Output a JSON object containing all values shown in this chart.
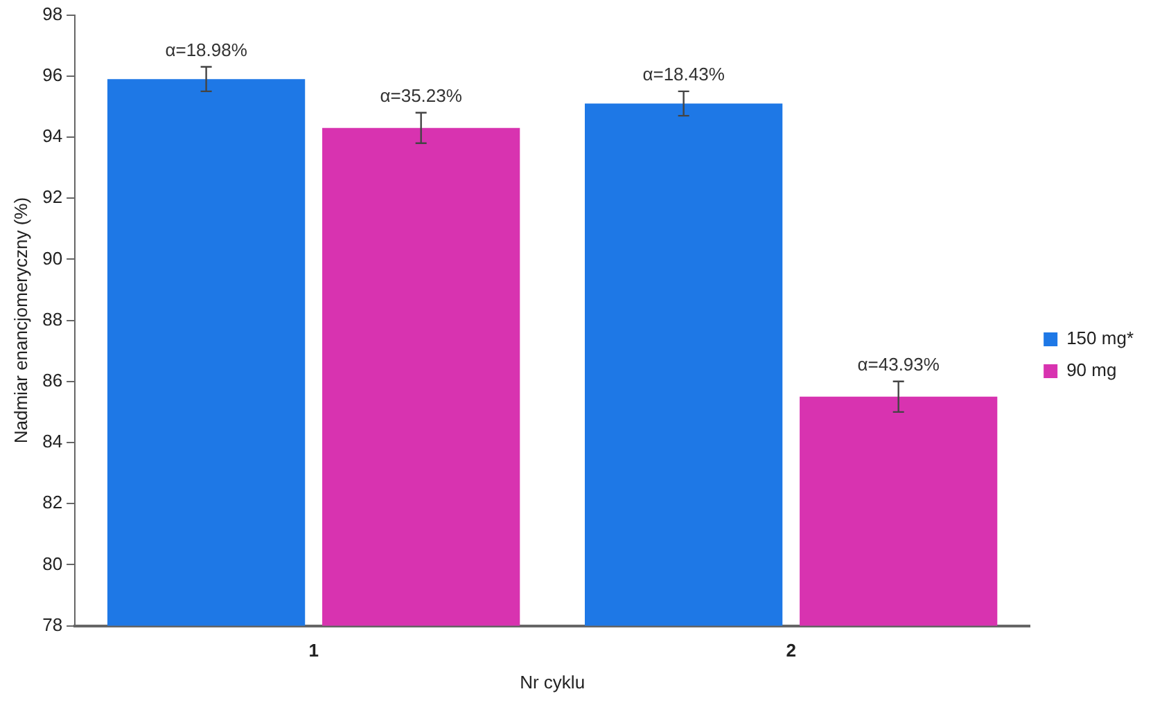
{
  "chart_data": {
    "type": "bar",
    "xlabel": "Nr cyklu",
    "ylabel": "Nadmiar enancjomeryczny (%)",
    "categories": [
      "1",
      "2"
    ],
    "series": [
      {
        "name": "150 mg*",
        "color": "#1e78e6",
        "values": [
          95.9,
          95.1
        ],
        "errors": [
          0.4,
          0.4
        ]
      },
      {
        "name": "90 mg",
        "color": "#d833b0",
        "values": [
          94.3,
          85.5
        ],
        "errors": [
          0.5,
          0.5
        ]
      }
    ],
    "annotations": [
      "α=18.98%",
      "α=35.23%",
      "α=18.43%",
      "α=43.93%"
    ],
    "ylim": [
      78,
      98
    ],
    "yticks": [
      78,
      80,
      82,
      84,
      86,
      88,
      90,
      92,
      94,
      96,
      98
    ],
    "grid": false,
    "legend": "right"
  }
}
